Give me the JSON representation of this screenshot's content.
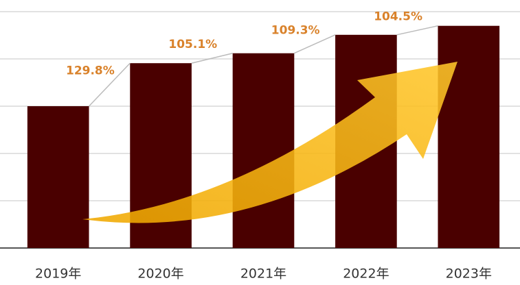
{
  "chart_data": {
    "type": "bar",
    "categories": [
      "2019年",
      "2020年",
      "2021年",
      "2022年",
      "2023年"
    ],
    "values": [
      3.0,
      3.91,
      4.12,
      4.51,
      4.7
    ],
    "color": "#4a0000",
    "ylim": [
      0,
      5
    ],
    "yticks": [
      0,
      1,
      2,
      3,
      4,
      5
    ],
    "grid": true,
    "growth": {
      "values": [
        129.8,
        105.1,
        109.3,
        104.5
      ],
      "value_labels": [
        "129.8%",
        "105.1%",
        "109.3%",
        "104.5%"
      ],
      "color": "#d9822b"
    }
  }
}
